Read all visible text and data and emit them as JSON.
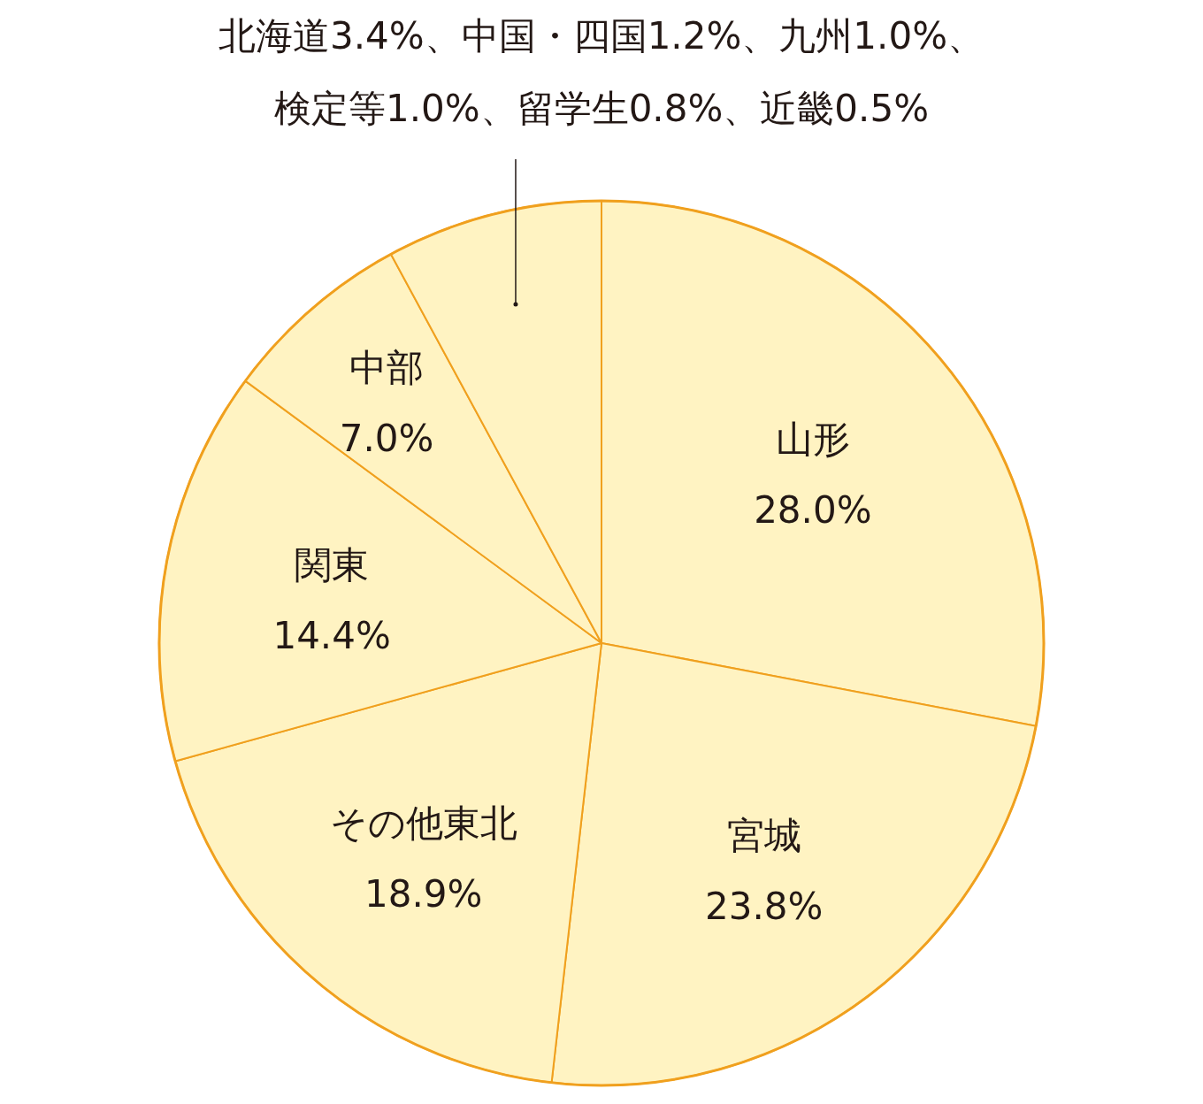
{
  "chart_data": {
    "type": "pie",
    "categories": [
      "山形",
      "宮城",
      "その他東北",
      "関東",
      "中部",
      null
    ],
    "values": [
      28.0,
      23.8,
      18.9,
      14.4,
      7.0,
      7.9
    ],
    "value_labels": [
      "28.0%",
      "23.8%",
      "18.9%",
      "14.4%",
      "7.0%",
      null
    ],
    "colors": [
      "#fff3c2",
      "#fff3c2",
      "#fff3c2",
      "#fff3c2",
      "#fff3c2",
      "#fff3c2"
    ],
    "annotations": [
      "北海道3.4%、中国・四国1.2%、九州1.0%、",
      "検定等1.0%、留学生0.8%、近畿0.5%"
    ]
  }
}
